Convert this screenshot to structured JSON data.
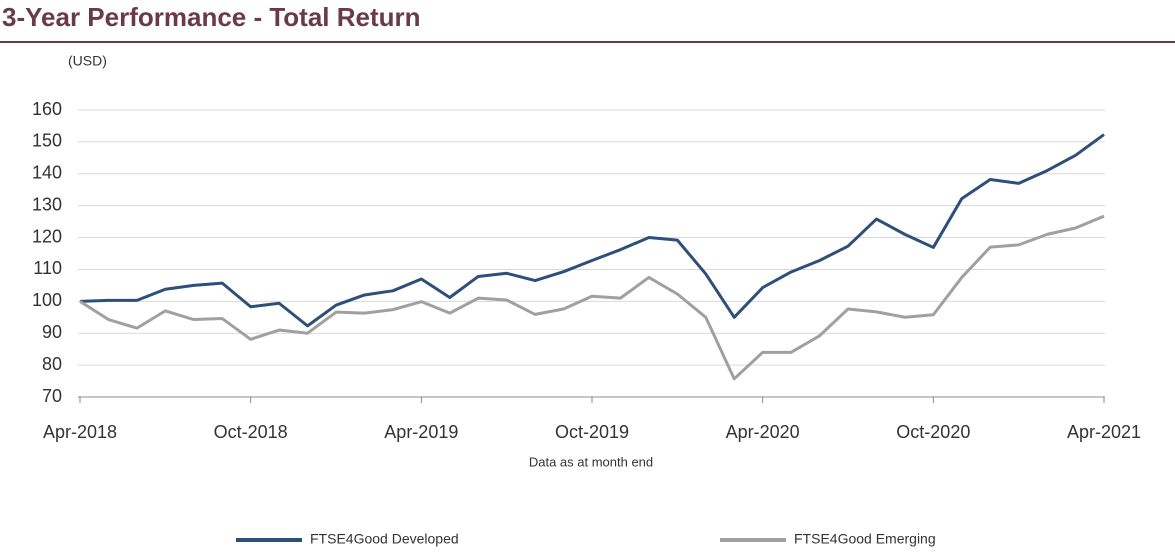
{
  "chart_data": {
    "type": "line",
    "title": "3-Year Performance - Total Return",
    "y_unit": "(USD)",
    "note": "Data as at month end",
    "categories": [
      "Apr-2018",
      null,
      null,
      null,
      null,
      null,
      "Oct-2018",
      null,
      null,
      null,
      null,
      null,
      "Apr-2019",
      null,
      null,
      null,
      null,
      null,
      "Oct-2019",
      null,
      null,
      null,
      null,
      null,
      "Apr-2020",
      null,
      null,
      null,
      null,
      null,
      "Oct-2020",
      null,
      null,
      null,
      null,
      null,
      "Apr-2021"
    ],
    "series": [
      {
        "name": "FTSE4Good Developed",
        "color": "#2e4f7a",
        "values": [
          100,
          100.3,
          100.3,
          103.8,
          105,
          105.7,
          98.3,
          99.4,
          92.3,
          98.8,
          102,
          103.3,
          107,
          101.2,
          107.8,
          108.8,
          106.5,
          109.3,
          112.8,
          116.2,
          120,
          119.2,
          108.6,
          95,
          104.3,
          109.2,
          112.8,
          117.3,
          125.8,
          121,
          116.9,
          132.2,
          138.2,
          137,
          141,
          145.8,
          152.3
        ]
      },
      {
        "name": "FTSE4Good Emerging",
        "color": "#a0a0a0",
        "values": [
          100,
          94.3,
          91.6,
          97,
          94.3,
          94.6,
          88.1,
          91,
          90,
          96.6,
          96.3,
          97.4,
          99.9,
          96.3,
          101,
          100.4,
          95.9,
          97.6,
          101.6,
          101,
          107.5,
          102.3,
          95,
          75.7,
          84,
          84,
          89.2,
          97.6,
          96.7,
          95,
          95.8,
          107.5,
          117,
          117.7,
          121,
          123,
          126.7
        ]
      }
    ],
    "ylim": [
      70,
      160
    ],
    "yticks": [
      70,
      80,
      90,
      100,
      110,
      120,
      130,
      140,
      150,
      160
    ],
    "grid": true
  }
}
